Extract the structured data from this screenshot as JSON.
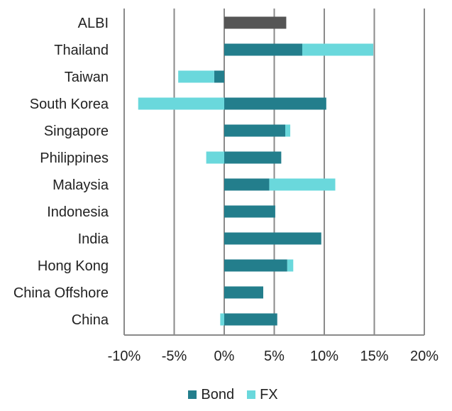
{
  "chart_data": {
    "type": "bar",
    "orientation": "horizontal",
    "stacked": true,
    "title": "",
    "xlabel": "",
    "ylabel": "",
    "xlim": [
      -0.1,
      0.2
    ],
    "x_ticks": [
      -0.1,
      -0.05,
      0.0,
      0.05,
      0.1,
      0.15,
      0.2
    ],
    "x_tick_labels": [
      "-10%",
      "-5%",
      "0%",
      "5%",
      "10%",
      "15%",
      "20%"
    ],
    "grid": "vertical",
    "legend_position": "bottom",
    "categories": [
      "ALBI",
      "Thailand",
      "Taiwan",
      "South Korea",
      "Singapore",
      "Philippines",
      "Malaysia",
      "Indonesia",
      "India",
      "Hong Kong",
      "China Offshore",
      "China"
    ],
    "series": [
      {
        "name": "Bond",
        "color": "#237e8c",
        "values": [
          null,
          0.078,
          -0.01,
          0.102,
          0.061,
          0.057,
          0.045,
          0.051,
          0.097,
          0.063,
          0.039,
          0.053
        ]
      },
      {
        "name": "FX",
        "color": "#6ad8dc",
        "values": [
          null,
          0.071,
          -0.036,
          -0.086,
          0.005,
          -0.018,
          0.066,
          0.0,
          0.0,
          0.006,
          0.0,
          -0.004
        ]
      }
    ],
    "total_bar": {
      "category": "ALBI",
      "value": 0.062,
      "color": "#555555"
    }
  }
}
